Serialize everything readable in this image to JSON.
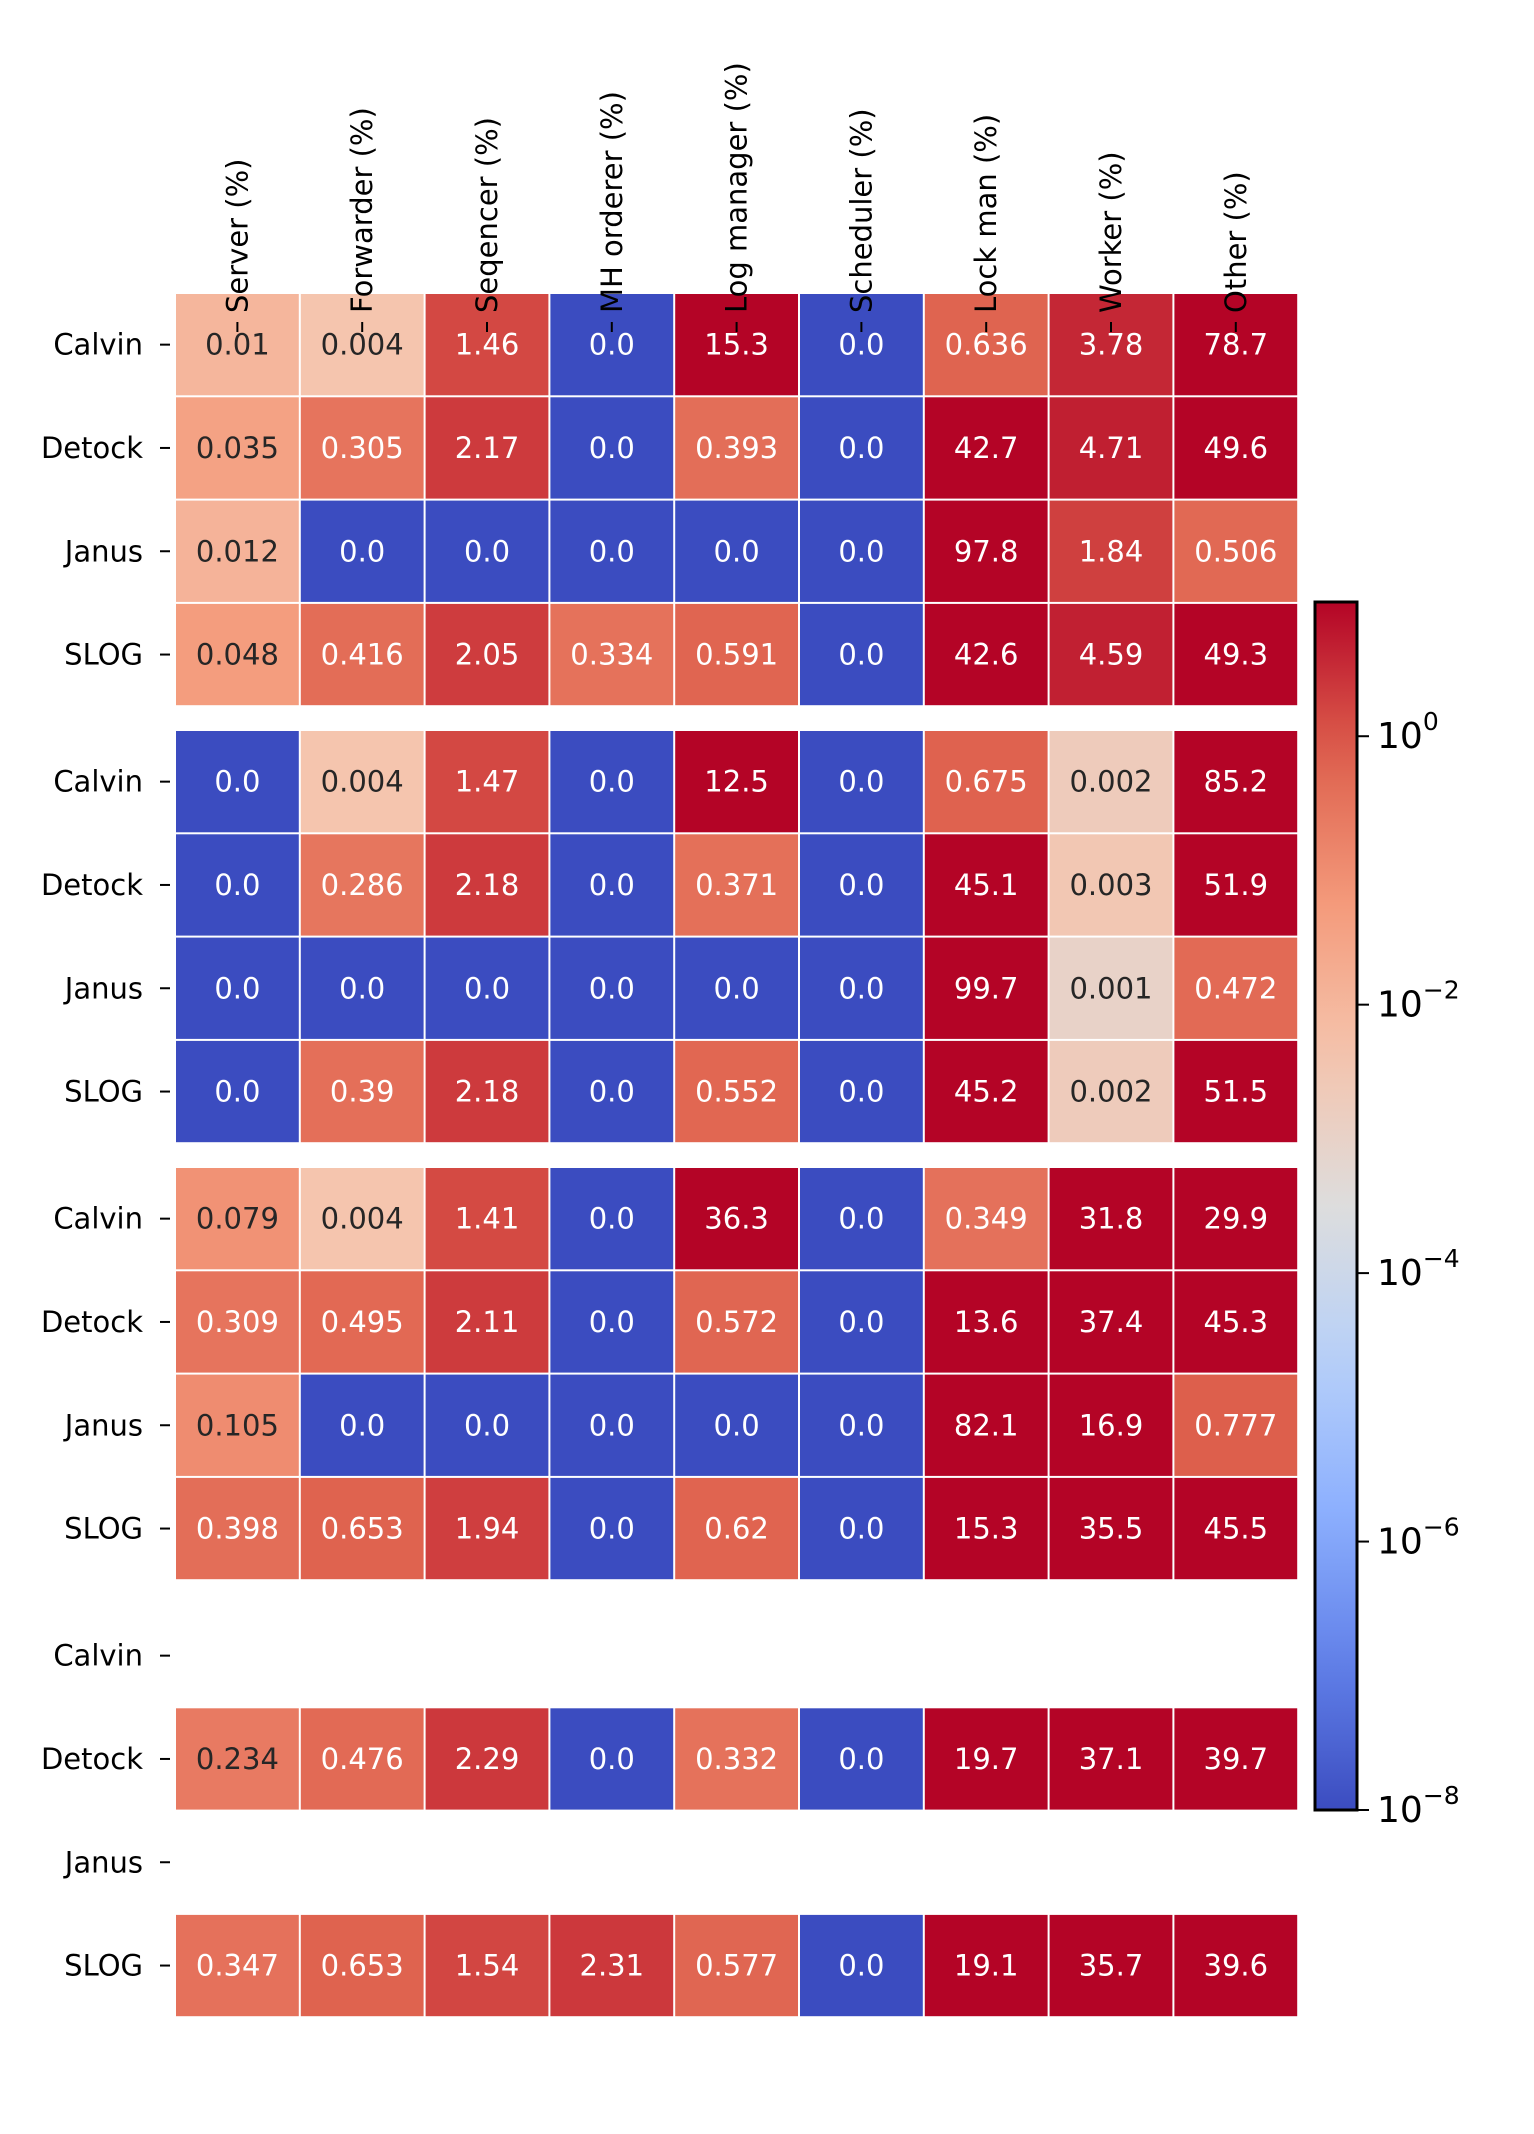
{
  "chart_data": {
    "type": "heatmap",
    "columns": [
      "Server (%)",
      "Forwarder (%)",
      "Seqencer (%)",
      "MH orderer (%)",
      "Log manager (%)",
      "Scheduler (%)",
      "Lock man (%)",
      "Worker (%)",
      "Other (%)"
    ],
    "row_groups": [
      {
        "rows": [
          {
            "label": "Calvin",
            "values": [
              "0.01",
              "0.004",
              "1.46",
              "0.0",
              "15.3",
              "0.0",
              "0.636",
              "3.78",
              "78.7"
            ]
          },
          {
            "label": "Detock",
            "values": [
              "0.035",
              "0.305",
              "2.17",
              "0.0",
              "0.393",
              "0.0",
              "42.7",
              "4.71",
              "49.6"
            ]
          },
          {
            "label": "Janus",
            "values": [
              "0.012",
              "0.0",
              "0.0",
              "0.0",
              "0.0",
              "0.0",
              "97.8",
              "1.84",
              "0.506"
            ]
          },
          {
            "label": "SLOG",
            "values": [
              "0.048",
              "0.416",
              "2.05",
              "0.334",
              "0.591",
              "0.0",
              "42.6",
              "4.59",
              "49.3"
            ]
          }
        ]
      },
      {
        "rows": [
          {
            "label": "Calvin",
            "values": [
              "0.0",
              "0.004",
              "1.47",
              "0.0",
              "12.5",
              "0.0",
              "0.675",
              "0.002",
              "85.2"
            ]
          },
          {
            "label": "Detock",
            "values": [
              "0.0",
              "0.286",
              "2.18",
              "0.0",
              "0.371",
              "0.0",
              "45.1",
              "0.003",
              "51.9"
            ]
          },
          {
            "label": "Janus",
            "values": [
              "0.0",
              "0.0",
              "0.0",
              "0.0",
              "0.0",
              "0.0",
              "99.7",
              "0.001",
              "0.472"
            ]
          },
          {
            "label": "SLOG",
            "values": [
              "0.0",
              "0.39",
              "2.18",
              "0.0",
              "0.552",
              "0.0",
              "45.2",
              "0.002",
              "51.5"
            ]
          }
        ]
      },
      {
        "rows": [
          {
            "label": "Calvin",
            "values": [
              "0.079",
              "0.004",
              "1.41",
              "0.0",
              "36.3",
              "0.0",
              "0.349",
              "31.8",
              "29.9"
            ]
          },
          {
            "label": "Detock",
            "values": [
              "0.309",
              "0.495",
              "2.11",
              "0.0",
              "0.572",
              "0.0",
              "13.6",
              "37.4",
              "45.3"
            ]
          },
          {
            "label": "Janus",
            "values": [
              "0.105",
              "0.0",
              "0.0",
              "0.0",
              "0.0",
              "0.0",
              "82.1",
              "16.9",
              "0.777"
            ]
          },
          {
            "label": "SLOG",
            "values": [
              "0.398",
              "0.653",
              "1.94",
              "0.0",
              "0.62",
              "0.0",
              "15.3",
              "35.5",
              "45.5"
            ]
          }
        ]
      },
      {
        "rows": [
          {
            "label": "Calvin",
            "values": null
          },
          {
            "label": "Detock",
            "values": [
              "0.234",
              "0.476",
              "2.29",
              "0.0",
              "0.332",
              "0.0",
              "19.7",
              "37.1",
              "39.7"
            ]
          },
          {
            "label": "Janus",
            "values": null
          },
          {
            "label": "SLOG",
            "values": [
              "0.347",
              "0.653",
              "1.54",
              "2.31",
              "0.577",
              "0.0",
              "19.1",
              "35.7",
              "39.6"
            ]
          }
        ]
      }
    ],
    "colorbar": {
      "scale": "log",
      "colormap": "coolwarm",
      "range": [
        1e-08,
        10
      ],
      "ticks": [
        {
          "value": 1e-08,
          "base": "10",
          "exp": "−8"
        },
        {
          "value": 1e-06,
          "base": "10",
          "exp": "−6"
        },
        {
          "value": 0.0001,
          "base": "10",
          "exp": "−4"
        },
        {
          "value": 0.01,
          "base": "10",
          "exp": "−2"
        },
        {
          "value": 1,
          "base": "10",
          "exp": "0"
        }
      ]
    }
  }
}
